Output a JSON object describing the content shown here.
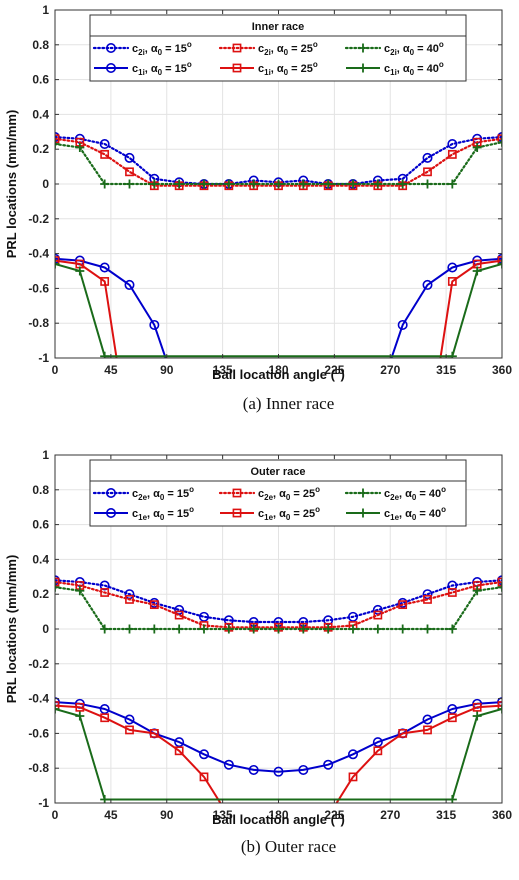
{
  "chart_data": [
    {
      "type": "line",
      "caption": "(a) Inner race",
      "legend_title": "Inner race",
      "xlabel": "Ball location angle (°)",
      "ylabel": "PRL locations (mm/mm)",
      "xlim": [
        0,
        360
      ],
      "ylim": [
        -1,
        1
      ],
      "xticks": [
        0,
        45,
        90,
        135,
        180,
        225,
        270,
        315,
        360
      ],
      "yticks": [
        -1,
        -0.8,
        -0.6,
        -0.4,
        -0.2,
        0,
        0.2,
        0.4,
        0.6,
        0.8,
        1
      ],
      "grid": true,
      "legend_position": "top",
      "series": [
        {
          "label": {
            "base": "c",
            "sub": "2i",
            "angle": "15"
          },
          "color": "#0000cc",
          "dash": "dotted",
          "marker": "circle",
          "x": [
            0,
            20,
            40,
            60,
            80,
            100,
            120,
            140,
            160,
            180,
            200,
            220,
            240,
            260,
            280,
            300,
            320,
            340,
            360
          ],
          "y": [
            0.27,
            0.26,
            0.23,
            0.15,
            0.03,
            0.01,
            0,
            0,
            0.02,
            0.01,
            0.02,
            0,
            0,
            0.02,
            0.03,
            0.15,
            0.23,
            0.26,
            0.27
          ]
        },
        {
          "label": {
            "base": "c",
            "sub": "2i",
            "angle": "25"
          },
          "color": "#dd1111",
          "dash": "dotted",
          "marker": "square",
          "x": [
            0,
            20,
            40,
            60,
            80,
            100,
            120,
            140,
            160,
            180,
            200,
            220,
            240,
            260,
            280,
            300,
            320,
            340,
            360
          ],
          "y": [
            0.26,
            0.24,
            0.17,
            0.07,
            -0.01,
            -0.01,
            -0.01,
            -0.01,
            -0.01,
            -0.01,
            -0.01,
            -0.01,
            -0.01,
            -0.01,
            -0.01,
            0.07,
            0.17,
            0.24,
            0.26
          ]
        },
        {
          "label": {
            "base": "c",
            "sub": "2i",
            "angle": "40"
          },
          "color": "#1a6b1a",
          "dash": "dotted",
          "marker": "plus",
          "x": [
            0,
            20,
            40,
            60,
            80,
            100,
            120,
            140,
            160,
            180,
            200,
            220,
            240,
            260,
            280,
            300,
            320,
            340,
            360
          ],
          "y": [
            0.23,
            0.21,
            0,
            0,
            0,
            0,
            0,
            0,
            0,
            0,
            0,
            0,
            0,
            0,
            0,
            0,
            0,
            0.21,
            0.24
          ]
        },
        {
          "label": {
            "base": "c",
            "sub": "1i",
            "angle": "15"
          },
          "color": "#0000cc",
          "dash": "solid",
          "marker": "circle",
          "x": [
            0,
            20,
            40,
            60,
            80,
            90,
            270,
            280,
            300,
            320,
            340,
            360
          ],
          "y": [
            -0.43,
            -0.44,
            -0.48,
            -0.58,
            -0.81,
            -1.02,
            -1.02,
            -0.81,
            -0.58,
            -0.48,
            -0.44,
            -0.43
          ]
        },
        {
          "label": {
            "base": "c",
            "sub": "1i",
            "angle": "25"
          },
          "color": "#dd1111",
          "dash": "solid",
          "marker": "square",
          "x": [
            0,
            20,
            40,
            50,
            310,
            320,
            340,
            360
          ],
          "y": [
            -0.44,
            -0.46,
            -0.56,
            -1.02,
            -1.02,
            -0.56,
            -0.46,
            -0.44
          ]
        },
        {
          "label": {
            "base": "c",
            "sub": "1i",
            "angle": "40"
          },
          "color": "#1a6b1a",
          "dash": "solid",
          "marker": "plus",
          "x": [
            0,
            20,
            40,
            320,
            340,
            360
          ],
          "y": [
            -0.46,
            -0.5,
            -0.99,
            -0.99,
            -0.5,
            -0.46
          ]
        }
      ]
    },
    {
      "type": "line",
      "caption": "(b) Outer race",
      "legend_title": "Outer race",
      "xlabel": "Ball location angle (°)",
      "ylabel": "PRL locations (mm/mm)",
      "xlim": [
        0,
        360
      ],
      "ylim": [
        -1,
        1
      ],
      "xticks": [
        0,
        45,
        90,
        135,
        180,
        225,
        270,
        315,
        360
      ],
      "yticks": [
        -1,
        -0.8,
        -0.6,
        -0.4,
        -0.2,
        0,
        0.2,
        0.4,
        0.6,
        0.8,
        1
      ],
      "grid": true,
      "legend_position": "top",
      "series": [
        {
          "label": {
            "base": "c",
            "sub": "2e",
            "angle": "15"
          },
          "color": "#0000cc",
          "dash": "dotted",
          "marker": "circle",
          "x": [
            0,
            20,
            40,
            60,
            80,
            100,
            120,
            140,
            160,
            180,
            200,
            220,
            240,
            260,
            280,
            300,
            320,
            340,
            360
          ],
          "y": [
            0.28,
            0.27,
            0.25,
            0.2,
            0.15,
            0.11,
            0.07,
            0.05,
            0.04,
            0.04,
            0.04,
            0.05,
            0.07,
            0.11,
            0.15,
            0.2,
            0.25,
            0.27,
            0.28
          ]
        },
        {
          "label": {
            "base": "c",
            "sub": "2e",
            "angle": "25"
          },
          "color": "#dd1111",
          "dash": "dotted",
          "marker": "square",
          "x": [
            0,
            20,
            40,
            60,
            80,
            100,
            120,
            140,
            160,
            180,
            200,
            220,
            240,
            260,
            280,
            300,
            320,
            340,
            360
          ],
          "y": [
            0.27,
            0.25,
            0.21,
            0.17,
            0.14,
            0.08,
            0.02,
            0.01,
            0.01,
            0.01,
            0.01,
            0.01,
            0.02,
            0.08,
            0.14,
            0.17,
            0.21,
            0.25,
            0.27
          ]
        },
        {
          "label": {
            "base": "c",
            "sub": "2e",
            "angle": "40"
          },
          "color": "#1a6b1a",
          "dash": "dotted",
          "marker": "plus",
          "x": [
            0,
            20,
            40,
            60,
            80,
            100,
            120,
            140,
            160,
            180,
            200,
            220,
            240,
            260,
            280,
            300,
            320,
            340,
            360
          ],
          "y": [
            0.24,
            0.22,
            0,
            0,
            0,
            0,
            0,
            0,
            0,
            0,
            0,
            0,
            0,
            0,
            0,
            0,
            0,
            0.22,
            0.24
          ]
        },
        {
          "label": {
            "base": "c",
            "sub": "1e",
            "angle": "15"
          },
          "color": "#0000cc",
          "dash": "solid",
          "marker": "circle",
          "x": [
            0,
            20,
            40,
            60,
            80,
            100,
            120,
            140,
            160,
            180,
            200,
            220,
            240,
            260,
            280,
            300,
            320,
            340,
            360
          ],
          "y": [
            -0.42,
            -0.43,
            -0.46,
            -0.52,
            -0.6,
            -0.65,
            -0.72,
            -0.78,
            -0.81,
            -0.82,
            -0.81,
            -0.78,
            -0.72,
            -0.65,
            -0.6,
            -0.52,
            -0.46,
            -0.43,
            -0.42
          ]
        },
        {
          "label": {
            "base": "c",
            "sub": "1e",
            "angle": "25"
          },
          "color": "#dd1111",
          "dash": "solid",
          "marker": "square",
          "x": [
            0,
            20,
            40,
            60,
            80,
            100,
            120,
            135,
            225,
            240,
            260,
            280,
            300,
            320,
            340,
            360
          ],
          "y": [
            -0.44,
            -0.45,
            -0.51,
            -0.58,
            -0.6,
            -0.7,
            -0.85,
            -1.02,
            -1.02,
            -0.85,
            -0.7,
            -0.6,
            -0.58,
            -0.51,
            -0.45,
            -0.44
          ]
        },
        {
          "label": {
            "base": "c",
            "sub": "1e",
            "angle": "40"
          },
          "color": "#1a6b1a",
          "dash": "solid",
          "marker": "plus",
          "x": [
            0,
            20,
            40,
            320,
            340,
            360
          ],
          "y": [
            -0.46,
            -0.5,
            -0.98,
            -0.98,
            -0.5,
            -0.46
          ]
        }
      ]
    }
  ]
}
